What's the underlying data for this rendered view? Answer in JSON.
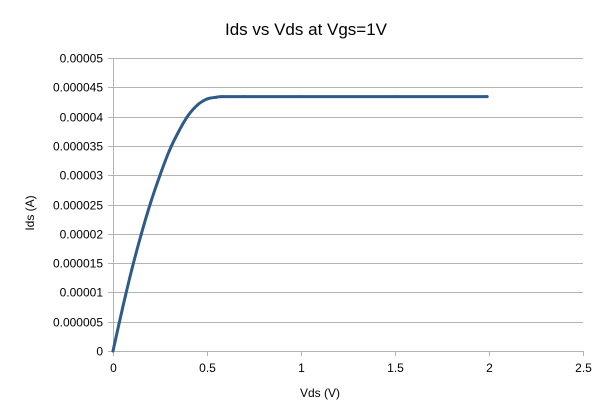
{
  "chart_data": {
    "type": "line",
    "title": "Ids vs Vds at Vgs=1V",
    "xlabel": "Vds (V)",
    "ylabel": "Ids (A)",
    "xlim": [
      0,
      2.5
    ],
    "ylim": [
      0,
      5e-05
    ],
    "x_ticks": [
      "0",
      "0.5",
      "1",
      "1.5",
      "2",
      "2.5"
    ],
    "y_ticks": [
      "0",
      "0.000005",
      "0.00001",
      "0.000015",
      "0.00002",
      "0.000025",
      "0.00003",
      "0.000035",
      "0.00004",
      "0.000045",
      "0.00005"
    ],
    "grid": true,
    "legend": "none",
    "series": [
      {
        "color": "#2e5b87",
        "x": [
          0,
          0.05,
          0.1,
          0.15,
          0.2,
          0.25,
          0.3,
          0.35,
          0.4,
          0.45,
          0.5,
          0.55,
          0.58,
          0.7,
          1.0,
          1.5,
          1.99
        ],
        "y": [
          0,
          7.2e-06,
          1.39e-05,
          1.99e-05,
          2.53e-05,
          3e-05,
          3.42e-05,
          3.75e-05,
          4.02e-05,
          4.2e-05,
          4.3e-05,
          4.33e-05,
          4.34e-05,
          4.34e-05,
          4.34e-05,
          4.34e-05,
          4.34e-05
        ]
      }
    ]
  }
}
